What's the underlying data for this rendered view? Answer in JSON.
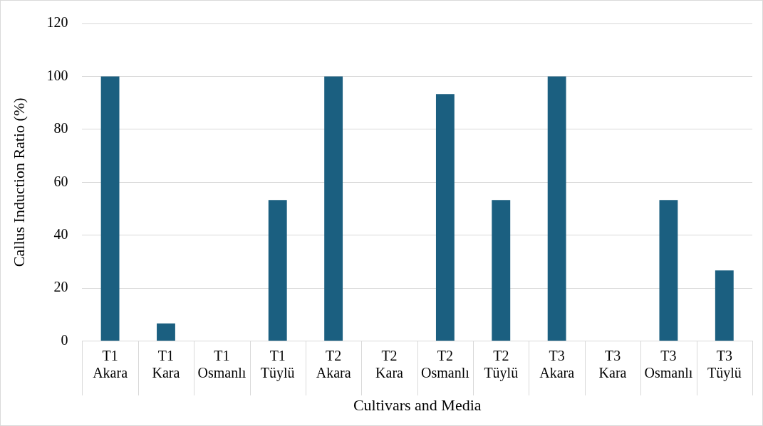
{
  "chart_data": {
    "type": "bar",
    "xlabel": "Cultivars and Media",
    "ylabel": "Callus Induction Ratio (%)",
    "categories": [
      "T1 Akara",
      "T1 Kara",
      "T1 Osmanlı",
      "T1 Tüylü",
      "T2 Akara",
      "T2 Kara",
      "T2 Osmanlı",
      "T2 Tüylü",
      "T3 Akara",
      "T3 Kara",
      "T3 Osmanlı",
      "T3 Tüylü"
    ],
    "values": [
      100,
      6.7,
      0,
      53.3,
      100,
      0,
      93.3,
      53.3,
      100,
      0,
      53.3,
      26.7
    ],
    "color": "#1b5f80",
    "ylim": [
      0,
      120
    ],
    "yticks": [
      0,
      20,
      40,
      60,
      80,
      100,
      120
    ],
    "grid": "y",
    "legend": false
  }
}
